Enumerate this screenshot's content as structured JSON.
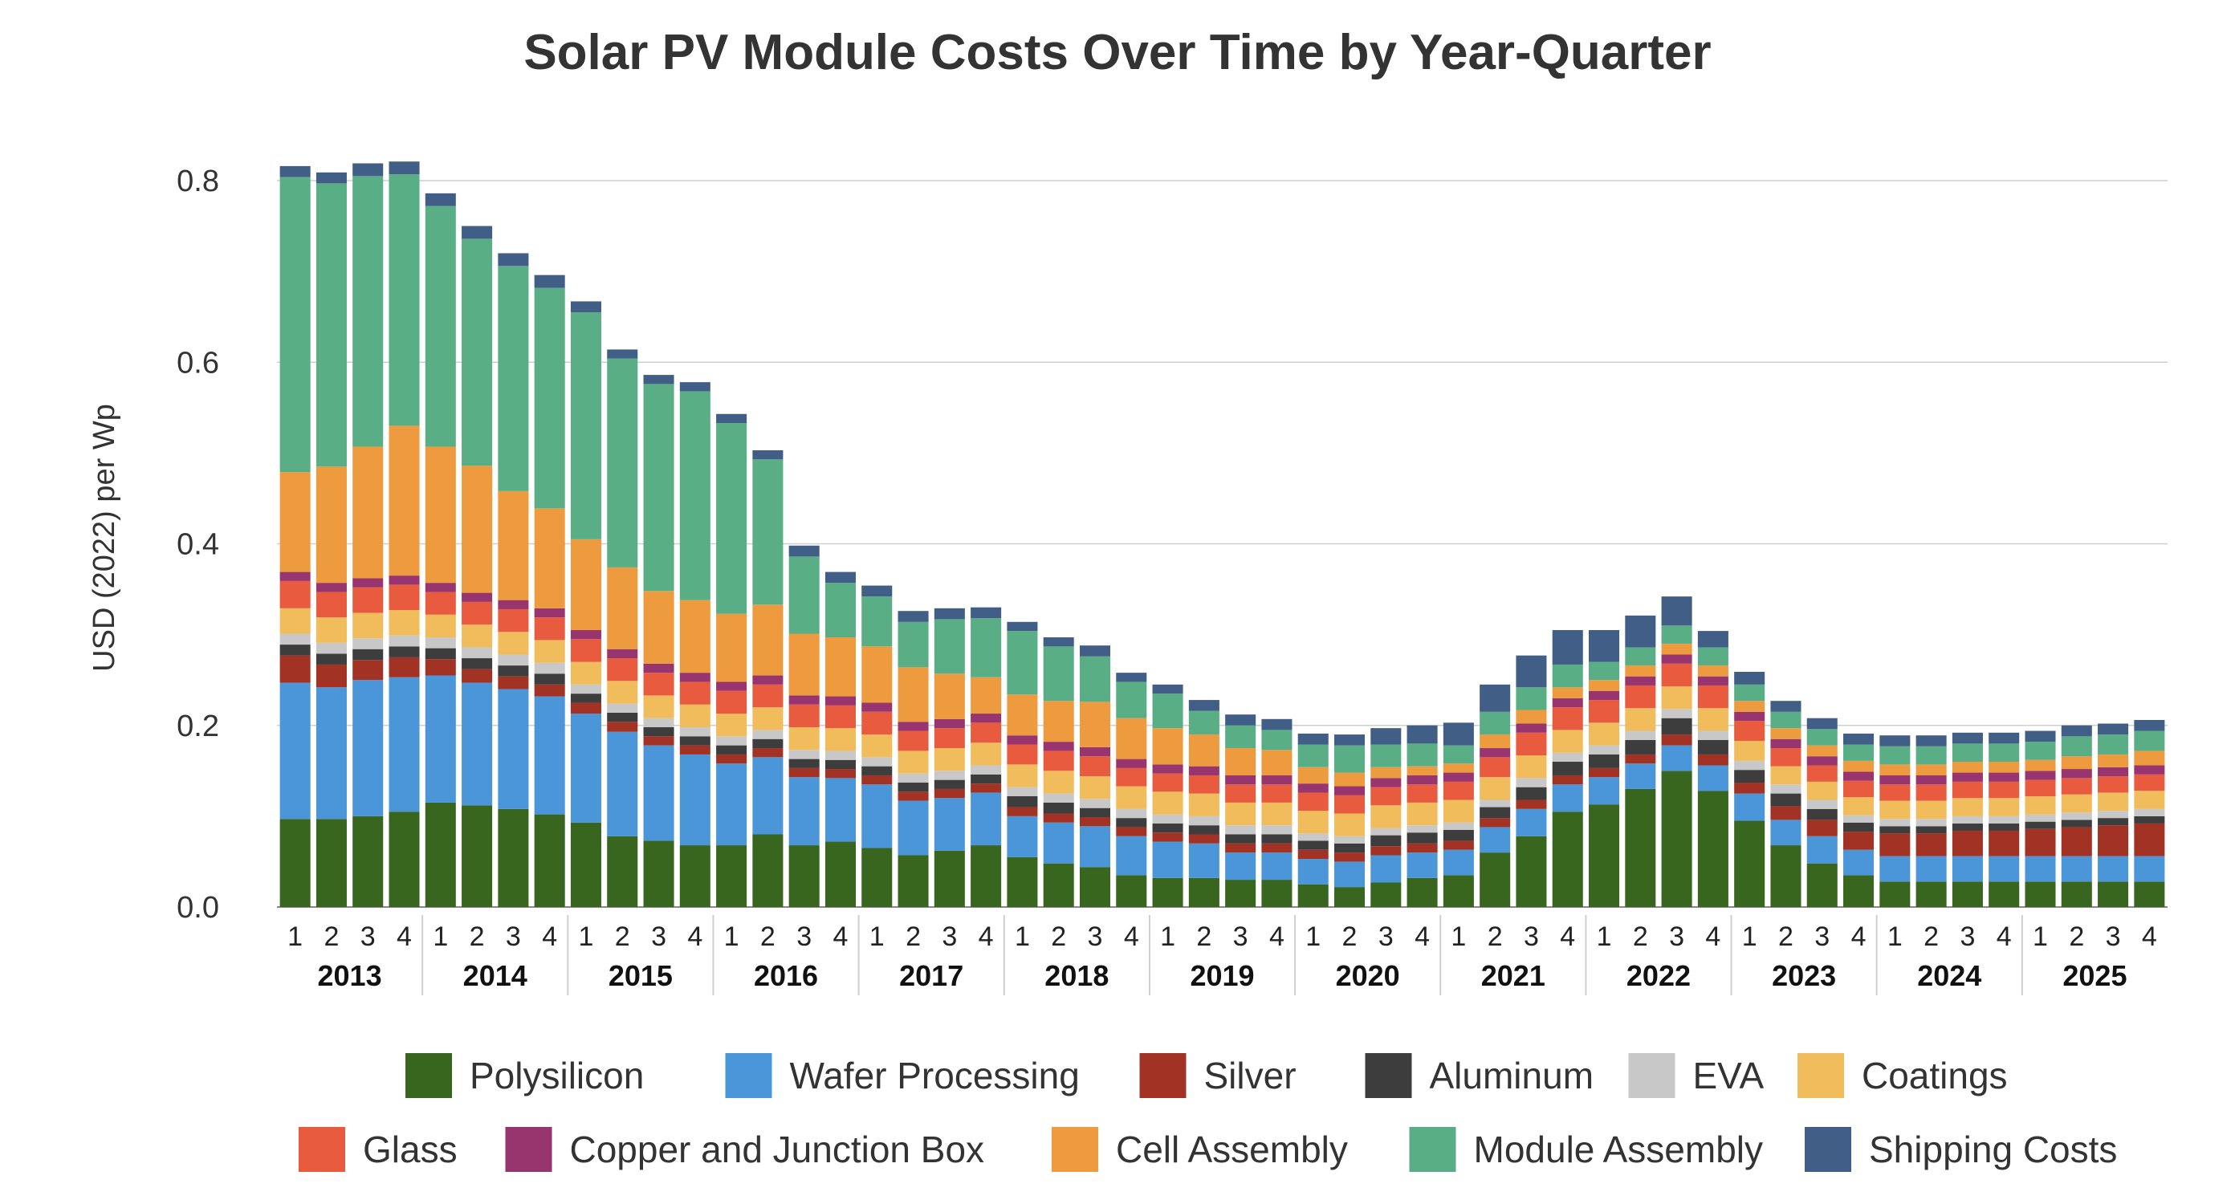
{
  "chart_data": {
    "type": "bar",
    "stacked": true,
    "title": "Solar PV Module Costs Over Time by Year-Quarter",
    "ylabel": "USD (2022) per Wp",
    "xlabel": "",
    "ylim": [
      0,
      0.8
    ],
    "yticks": [
      "0.0",
      "0.2",
      "0.4",
      "0.6",
      "0.8"
    ],
    "grid": true,
    "legend_position": "bottom",
    "years": [
      "2013",
      "2014",
      "2015",
      "2016",
      "2017",
      "2018",
      "2019",
      "2020",
      "2021",
      "2022",
      "2023",
      "2024",
      "2025"
    ],
    "quarters": [
      "1",
      "2",
      "3",
      "4"
    ],
    "series": [
      {
        "name": "Polysilicon",
        "color": "#38661f",
        "values": [
          0.097,
          0.097,
          0.1,
          0.105,
          0.115,
          0.112,
          0.108,
          0.102,
          0.093,
          0.078,
          0.073,
          0.068,
          0.068,
          0.08,
          0.068,
          0.072,
          0.065,
          0.057,
          0.062,
          0.068,
          0.055,
          0.048,
          0.044,
          0.035,
          0.032,
          0.032,
          0.03,
          0.03,
          0.025,
          0.022,
          0.027,
          0.032,
          0.035,
          0.06,
          0.078,
          0.105,
          0.113,
          0.13,
          0.15,
          0.128,
          0.095,
          0.068,
          0.048,
          0.035,
          0.028,
          0.028,
          0.028,
          0.028,
          0.028,
          0.028,
          0.028,
          0.028
        ]
      },
      {
        "name": "Wafer Processing",
        "color": "#4a96d9",
        "values": [
          0.15,
          0.145,
          0.15,
          0.148,
          0.14,
          0.135,
          0.132,
          0.13,
          0.12,
          0.115,
          0.105,
          0.1,
          0.09,
          0.085,
          0.075,
          0.07,
          0.07,
          0.06,
          0.058,
          0.058,
          0.045,
          0.045,
          0.045,
          0.043,
          0.04,
          0.038,
          0.03,
          0.03,
          0.028,
          0.028,
          0.03,
          0.028,
          0.028,
          0.028,
          0.03,
          0.03,
          0.03,
          0.028,
          0.028,
          0.028,
          0.03,
          0.028,
          0.03,
          0.028,
          0.028,
          0.028,
          0.028,
          0.028,
          0.028,
          0.028,
          0.028,
          0.028
        ]
      },
      {
        "name": "Silver",
        "color": "#a23324",
        "values": [
          0.03,
          0.025,
          0.022,
          0.022,
          0.018,
          0.015,
          0.014,
          0.013,
          0.012,
          0.011,
          0.01,
          0.01,
          0.01,
          0.01,
          0.01,
          0.01,
          0.01,
          0.01,
          0.01,
          0.01,
          0.01,
          0.01,
          0.01,
          0.01,
          0.01,
          0.01,
          0.01,
          0.01,
          0.01,
          0.01,
          0.01,
          0.01,
          0.01,
          0.01,
          0.01,
          0.01,
          0.01,
          0.01,
          0.012,
          0.012,
          0.012,
          0.015,
          0.018,
          0.02,
          0.025,
          0.025,
          0.028,
          0.028,
          0.03,
          0.032,
          0.034,
          0.036
        ]
      },
      {
        "name": "Aluminum",
        "color": "#3d3d3d",
        "values": [
          0.012,
          0.012,
          0.012,
          0.012,
          0.012,
          0.012,
          0.012,
          0.012,
          0.01,
          0.01,
          0.01,
          0.01,
          0.01,
          0.01,
          0.01,
          0.01,
          0.01,
          0.01,
          0.01,
          0.01,
          0.012,
          0.012,
          0.01,
          0.01,
          0.01,
          0.01,
          0.01,
          0.01,
          0.01,
          0.01,
          0.012,
          0.012,
          0.012,
          0.012,
          0.014,
          0.015,
          0.015,
          0.016,
          0.018,
          0.016,
          0.014,
          0.014,
          0.012,
          0.01,
          0.008,
          0.008,
          0.008,
          0.008,
          0.008,
          0.008,
          0.008,
          0.008
        ]
      },
      {
        "name": "EVA",
        "color": "#c8c8c8",
        "values": [
          0.012,
          0.012,
          0.012,
          0.012,
          0.012,
          0.012,
          0.012,
          0.012,
          0.01,
          0.01,
          0.01,
          0.01,
          0.01,
          0.01,
          0.01,
          0.01,
          0.01,
          0.01,
          0.01,
          0.01,
          0.01,
          0.01,
          0.01,
          0.01,
          0.01,
          0.01,
          0.01,
          0.01,
          0.008,
          0.008,
          0.008,
          0.008,
          0.008,
          0.008,
          0.01,
          0.01,
          0.01,
          0.01,
          0.01,
          0.01,
          0.01,
          0.01,
          0.01,
          0.008,
          0.008,
          0.008,
          0.008,
          0.008,
          0.008,
          0.008,
          0.008,
          0.008
        ]
      },
      {
        "name": "Coatings",
        "color": "#f1bc5c",
        "values": [
          0.028,
          0.028,
          0.028,
          0.028,
          0.025,
          0.025,
          0.025,
          0.025,
          0.025,
          0.025,
          0.025,
          0.025,
          0.025,
          0.025,
          0.025,
          0.025,
          0.025,
          0.025,
          0.025,
          0.025,
          0.025,
          0.025,
          0.025,
          0.025,
          0.025,
          0.025,
          0.025,
          0.025,
          0.025,
          0.025,
          0.025,
          0.025,
          0.025,
          0.025,
          0.025,
          0.025,
          0.025,
          0.025,
          0.025,
          0.025,
          0.022,
          0.02,
          0.02,
          0.02,
          0.02,
          0.02,
          0.02,
          0.02,
          0.02,
          0.02,
          0.02,
          0.02
        ]
      },
      {
        "name": "Glass",
        "color": "#e85b3e",
        "values": [
          0.03,
          0.028,
          0.028,
          0.028,
          0.025,
          0.025,
          0.025,
          0.025,
          0.025,
          0.025,
          0.025,
          0.025,
          0.025,
          0.025,
          0.025,
          0.025,
          0.025,
          0.022,
          0.022,
          0.022,
          0.022,
          0.022,
          0.022,
          0.02,
          0.02,
          0.02,
          0.02,
          0.02,
          0.02,
          0.02,
          0.02,
          0.02,
          0.02,
          0.022,
          0.025,
          0.025,
          0.025,
          0.025,
          0.025,
          0.025,
          0.022,
          0.02,
          0.018,
          0.018,
          0.018,
          0.018,
          0.018,
          0.018,
          0.018,
          0.018,
          0.018,
          0.018
        ]
      },
      {
        "name": "Copper and Junction Box",
        "color": "#99356e",
        "values": [
          0.01,
          0.01,
          0.01,
          0.01,
          0.01,
          0.01,
          0.01,
          0.01,
          0.01,
          0.01,
          0.01,
          0.01,
          0.01,
          0.01,
          0.01,
          0.01,
          0.01,
          0.01,
          0.01,
          0.01,
          0.01,
          0.01,
          0.01,
          0.01,
          0.01,
          0.01,
          0.01,
          0.01,
          0.01,
          0.01,
          0.01,
          0.01,
          0.01,
          0.01,
          0.01,
          0.01,
          0.01,
          0.01,
          0.01,
          0.01,
          0.01,
          0.01,
          0.01,
          0.01,
          0.01,
          0.01,
          0.01,
          0.01,
          0.01,
          0.01,
          0.01,
          0.01
        ]
      },
      {
        "name": "Cell Assembly",
        "color": "#ee9a3e",
        "values": [
          0.11,
          0.128,
          0.145,
          0.165,
          0.15,
          0.14,
          0.12,
          0.11,
          0.1,
          0.09,
          0.08,
          0.08,
          0.075,
          0.078,
          0.068,
          0.065,
          0.062,
          0.06,
          0.05,
          0.04,
          0.045,
          0.045,
          0.05,
          0.045,
          0.04,
          0.035,
          0.03,
          0.028,
          0.018,
          0.015,
          0.012,
          0.01,
          0.01,
          0.015,
          0.015,
          0.012,
          0.012,
          0.012,
          0.012,
          0.012,
          0.012,
          0.012,
          0.012,
          0.012,
          0.012,
          0.012,
          0.012,
          0.012,
          0.012,
          0.014,
          0.014,
          0.016
        ]
      },
      {
        "name": "Module Assembly",
        "color": "#5aae86",
        "values": [
          0.325,
          0.312,
          0.298,
          0.277,
          0.265,
          0.25,
          0.248,
          0.243,
          0.25,
          0.23,
          0.228,
          0.23,
          0.21,
          0.16,
          0.085,
          0.06,
          0.055,
          0.05,
          0.06,
          0.065,
          0.07,
          0.06,
          0.05,
          0.04,
          0.038,
          0.026,
          0.025,
          0.022,
          0.025,
          0.03,
          0.025,
          0.025,
          0.02,
          0.025,
          0.025,
          0.025,
          0.02,
          0.02,
          0.02,
          0.02,
          0.018,
          0.018,
          0.018,
          0.018,
          0.02,
          0.02,
          0.02,
          0.02,
          0.02,
          0.022,
          0.022,
          0.022
        ]
      },
      {
        "name": "Shipping Costs",
        "color": "#405e86",
        "values": [
          0.012,
          0.012,
          0.014,
          0.014,
          0.014,
          0.014,
          0.014,
          0.014,
          0.012,
          0.01,
          0.01,
          0.01,
          0.01,
          0.01,
          0.012,
          0.012,
          0.012,
          0.012,
          0.012,
          0.012,
          0.01,
          0.01,
          0.012,
          0.01,
          0.01,
          0.012,
          0.012,
          0.012,
          0.012,
          0.012,
          0.018,
          0.02,
          0.025,
          0.03,
          0.035,
          0.038,
          0.035,
          0.035,
          0.032,
          0.018,
          0.014,
          0.012,
          0.012,
          0.012,
          0.012,
          0.012,
          0.012,
          0.012,
          0.012,
          0.012,
          0.012,
          0.012
        ]
      }
    ]
  }
}
